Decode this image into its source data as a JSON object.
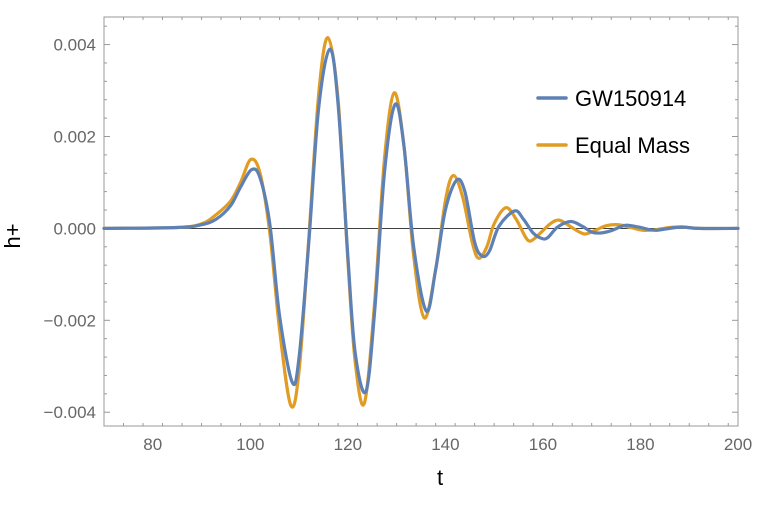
{
  "chart_data": {
    "type": "line",
    "title": "",
    "xlabel": "t",
    "ylabel": "h+",
    "xlim": [
      70,
      200
    ],
    "ylim": [
      -0.0043,
      0.0046
    ],
    "xticks": [
      80,
      100,
      120,
      140,
      160,
      180,
      200
    ],
    "yticks": [
      -0.004,
      -0.002,
      0.0,
      0.002,
      0.004
    ],
    "ytick_labels": [
      "−0.004",
      "−0.002",
      "0.000",
      "0.002",
      "0.004"
    ],
    "zero_line": true,
    "grid": false,
    "legend_position": "top-right",
    "series": [
      {
        "name": "GW150914",
        "color": "#5E81B5",
        "x": [
          70,
          85,
          90,
          93,
          96,
          98,
          100.3,
          102,
          104,
          106,
          108.6,
          110,
          112,
          114,
          116.3,
          118,
          120,
          121.5,
          123.7,
          125.5,
          127.5,
          129.7,
          131.5,
          133.5,
          136.1,
          138,
          140,
          142.3,
          144,
          146,
          147.5,
          149,
          151,
          154.2,
          156,
          158,
          159.8,
          161,
          163,
          165.7,
          168,
          170,
          171.8,
          174,
          176,
          177.3,
          180,
          182,
          183.5,
          186,
          188.5,
          192,
          200
        ],
        "y": [
          0,
          2e-05,
          8e-05,
          0.0002,
          0.0005,
          0.0009,
          0.00128,
          0.0011,
          0.0001,
          -0.0019,
          -0.00335,
          -0.0028,
          -0.0003,
          0.0026,
          0.0039,
          0.0027,
          -0.0006,
          -0.0027,
          -0.00355,
          -0.0018,
          0.0012,
          0.0027,
          0.0018,
          -0.0004,
          -0.0018,
          -0.0009,
          0.0004,
          0.00105,
          0.0008,
          -0.0003,
          -0.0006,
          -0.0005,
          5e-05,
          0.00038,
          0.0002,
          -0.0001,
          -0.00022,
          -0.0002,
          3e-05,
          0.00015,
          5e-05,
          -8e-05,
          -0.0001,
          -5e-05,
          4e-05,
          7e-05,
          2e-05,
          -3e-05,
          -4e-05,
          0,
          3e-05,
          0,
          0
        ]
      },
      {
        "name": "Equal Mass",
        "color": "#E19C24",
        "x": [
          70,
          85,
          90,
          93,
          96,
          98,
          100.1,
          102,
          104,
          106,
          108.3,
          110,
          112,
          114,
          115.9,
          118,
          120,
          121.5,
          123.4,
          125.5,
          127.5,
          129.5,
          131.5,
          133.5,
          135.7,
          138,
          140,
          141.6,
          143.5,
          145.5,
          146.8,
          148.5,
          150,
          152.4,
          154.5,
          156.5,
          157.6,
          159.5,
          161.5,
          163.3,
          165.5,
          167.5,
          168.8,
          171,
          173,
          175.5,
          178,
          180.5,
          183,
          186,
          188.5,
          192,
          200
        ],
        "y": [
          0,
          2e-05,
          0.0001,
          0.0003,
          0.0006,
          0.001,
          0.0015,
          0.0012,
          -0.0001,
          -0.0022,
          -0.00385,
          -0.0031,
          -0.0002,
          0.0029,
          0.00415,
          0.0028,
          -0.0007,
          -0.0029,
          -0.0038,
          -0.0016,
          0.0015,
          0.00295,
          0.0018,
          -0.0006,
          -0.00195,
          -0.0009,
          0.0006,
          0.00115,
          0.0007,
          -0.0003,
          -0.00065,
          -0.0004,
          0.0001,
          0.00045,
          0.0002,
          -0.0002,
          -0.00027,
          -0.0001,
          0.0001,
          0.00018,
          5e-05,
          -8e-05,
          -0.00012,
          -3e-05,
          6e-05,
          8e-05,
          2e-05,
          -4e-05,
          -3e-05,
          2e-05,
          3e-05,
          0,
          0
        ]
      }
    ]
  }
}
